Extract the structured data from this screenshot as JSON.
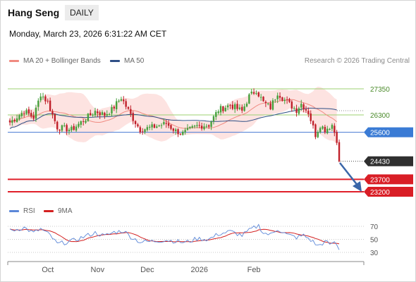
{
  "header": {
    "title": "Hang Seng",
    "interval": "DAILY",
    "timestamp": "Monday, March 23, 2026 6:31:22 AM CET",
    "copyright": "Research © 2026 Trading Central"
  },
  "colors": {
    "up": "#45a03c",
    "down": "#c0202a",
    "ma20": "#f08a80",
    "bollinger_fill": "#fde3e1",
    "ma50": "#2e4f86",
    "resistance_green": "#9cd072",
    "pivot_blue": "#5b87d8",
    "support_red": "#e0202a",
    "rsi": "#5b87d8",
    "rsi_ma": "#d42020",
    "arrow": "#3a66a8"
  },
  "chart_data": [
    {
      "type": "candlestick",
      "title": "Hang Seng",
      "interval": "DAILY",
      "legend": [
        {
          "name": "MA 20 + Bollinger Bands",
          "color": "#f08a80"
        },
        {
          "name": "MA 50",
          "color": "#2e4f86"
        }
      ],
      "x_ticks": [
        "Oct",
        "Nov",
        "Dec",
        "2026",
        "Feb"
      ],
      "y_range": [
        23000,
        27800
      ],
      "levels": [
        {
          "label": "27350",
          "value": 27350,
          "kind": "resistance",
          "style": "plain"
        },
        {
          "label": "26300",
          "value": 26300,
          "kind": "resistance",
          "style": "plain"
        },
        {
          "label": "25600",
          "value": 25600,
          "kind": "pivot",
          "style": "badge"
        },
        {
          "label": "24430",
          "value": 24430,
          "kind": "last",
          "style": "badge"
        },
        {
          "label": "23700",
          "value": 23700,
          "kind": "support",
          "style": "badge"
        },
        {
          "label": "23200",
          "value": 23200,
          "kind": "support",
          "style": "badge"
        }
      ],
      "price_path": [
        {
          "x": 0,
          "price": 26000
        },
        {
          "x": 6,
          "price": 26450
        },
        {
          "x": 10,
          "price": 26200
        },
        {
          "x": 13,
          "price": 27150
        },
        {
          "x": 16,
          "price": 26800
        },
        {
          "x": 20,
          "price": 25800
        },
        {
          "x": 26,
          "price": 25700
        },
        {
          "x": 32,
          "price": 26150
        },
        {
          "x": 36,
          "price": 26450
        },
        {
          "x": 40,
          "price": 26300
        },
        {
          "x": 43,
          "price": 26500
        },
        {
          "x": 47,
          "price": 27000
        },
        {
          "x": 51,
          "price": 26300
        },
        {
          "x": 55,
          "price": 25700
        },
        {
          "x": 60,
          "price": 25800
        },
        {
          "x": 66,
          "price": 25950
        },
        {
          "x": 70,
          "price": 25650
        },
        {
          "x": 73,
          "price": 25550
        },
        {
          "x": 79,
          "price": 25850
        },
        {
          "x": 84,
          "price": 25900
        },
        {
          "x": 88,
          "price": 26500
        },
        {
          "x": 93,
          "price": 26700
        },
        {
          "x": 98,
          "price": 26450
        },
        {
          "x": 101,
          "price": 27050
        },
        {
          "x": 104,
          "price": 27300
        },
        {
          "x": 107,
          "price": 26800
        },
        {
          "x": 110,
          "price": 26600
        },
        {
          "x": 113,
          "price": 27200
        },
        {
          "x": 116,
          "price": 26900
        },
        {
          "x": 119,
          "price": 26650
        },
        {
          "x": 121,
          "price": 26500
        },
        {
          "x": 123,
          "price": 26750
        },
        {
          "x": 126,
          "price": 26400
        },
        {
          "x": 129,
          "price": 25500
        },
        {
          "x": 131,
          "price": 25900
        },
        {
          "x": 133,
          "price": 25700
        },
        {
          "x": 136,
          "price": 25900
        },
        {
          "x": 138,
          "price": 25300
        },
        {
          "x": 139,
          "price": 24430
        }
      ]
    },
    {
      "type": "line",
      "title": "RSI",
      "series": [
        {
          "name": "RSI",
          "color": "#5b87d8"
        },
        {
          "name": "9MA",
          "color": "#d42020"
        }
      ],
      "y_range": [
        30,
        80
      ],
      "y_ticks": [
        "70",
        "50",
        "30"
      ],
      "rsi_path": [
        {
          "x": 0,
          "rsi": 63
        },
        {
          "x": 6,
          "rsi": 68
        },
        {
          "x": 10,
          "rsi": 60
        },
        {
          "x": 13,
          "rsi": 66
        },
        {
          "x": 17,
          "rsi": 56
        },
        {
          "x": 20,
          "rsi": 43
        },
        {
          "x": 26,
          "rsi": 47
        },
        {
          "x": 32,
          "rsi": 55
        },
        {
          "x": 36,
          "rsi": 60
        },
        {
          "x": 40,
          "rsi": 55
        },
        {
          "x": 44,
          "rsi": 61
        },
        {
          "x": 48,
          "rsi": 63
        },
        {
          "x": 51,
          "rsi": 54
        },
        {
          "x": 55,
          "rsi": 46
        },
        {
          "x": 60,
          "rsi": 47
        },
        {
          "x": 66,
          "rsi": 49
        },
        {
          "x": 70,
          "rsi": 47
        },
        {
          "x": 74,
          "rsi": 45
        },
        {
          "x": 79,
          "rsi": 51
        },
        {
          "x": 84,
          "rsi": 50
        },
        {
          "x": 88,
          "rsi": 58
        },
        {
          "x": 93,
          "rsi": 62
        },
        {
          "x": 98,
          "rsi": 56
        },
        {
          "x": 102,
          "rsi": 66
        },
        {
          "x": 105,
          "rsi": 71
        },
        {
          "x": 107,
          "rsi": 60
        },
        {
          "x": 110,
          "rsi": 57
        },
        {
          "x": 113,
          "rsi": 66
        },
        {
          "x": 117,
          "rsi": 57
        },
        {
          "x": 121,
          "rsi": 53
        },
        {
          "x": 124,
          "rsi": 56
        },
        {
          "x": 127,
          "rsi": 49
        },
        {
          "x": 130,
          "rsi": 40
        },
        {
          "x": 133,
          "rsi": 46
        },
        {
          "x": 136,
          "rsi": 42
        },
        {
          "x": 137,
          "rsi": 47
        },
        {
          "x": 139,
          "rsi": 34
        }
      ]
    }
  ]
}
